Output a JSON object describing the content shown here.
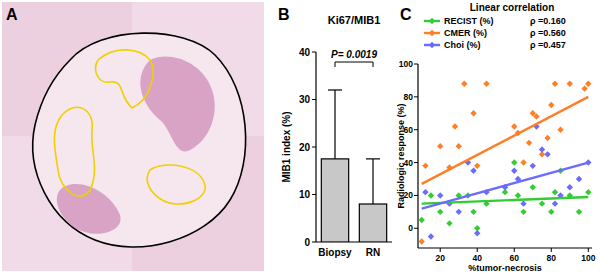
{
  "image_panel": {
    "label": "A"
  },
  "chart_data": [
    {
      "type": "bar",
      "title": "Ki67/MIB1",
      "annotations": [
        "B",
        "P= 0.0019"
      ],
      "y_label": "MIB1 index (%)",
      "categories": [
        "Biopsy",
        "RN"
      ],
      "values": [
        17.5,
        8
      ],
      "errors": [
        14.5,
        9.5
      ],
      "color": "#c8c8c8",
      "ylim": [
        0,
        40
      ],
      "yticks": [
        0,
        10,
        20,
        30,
        40
      ],
      "grid": false
    },
    {
      "type": "scatter",
      "title": "Linear correlation",
      "annotations": [
        "C"
      ],
      "x_label": "%tumor-necrosis",
      "y_label": "Radiologic response (%)",
      "xlim": [
        8,
        102
      ],
      "xticks": [
        20,
        40,
        60,
        80,
        100
      ],
      "ylim": [
        -12,
        100
      ],
      "yticks": [
        0,
        20,
        40,
        60,
        80,
        100
      ],
      "legend": "top-left",
      "grid": false,
      "marker": "diamond",
      "series": [
        {
          "name": "RECIST (%)",
          "annotation": "ρ =0.160",
          "color": "#33cc33",
          "x": [
            10,
            15,
            20,
            25,
            30,
            35,
            38,
            40,
            45,
            55,
            60,
            62,
            65,
            70,
            75,
            80,
            82,
            85,
            90,
            95,
            100
          ],
          "values": [
            5,
            20,
            10,
            3,
            20,
            20,
            10,
            0,
            15,
            22,
            40,
            20,
            10,
            25,
            15,
            10,
            22,
            35,
            20,
            10,
            22
          ],
          "fit": {
            "x": [
              10,
              100
            ],
            "y": [
              15,
              19
            ]
          }
        },
        {
          "name": "CMER (%)",
          "annotation": "ρ =0.560",
          "color": "#ff7f27",
          "x": [
            10,
            12,
            20,
            25,
            28,
            30,
            33,
            38,
            40,
            45,
            60,
            62,
            65,
            68,
            70,
            72,
            75,
            78,
            80,
            82,
            85,
            90,
            98,
            100
          ],
          "values": [
            -8,
            38,
            50,
            37,
            62,
            50,
            88,
            70,
            38,
            88,
            62,
            58,
            40,
            52,
            70,
            68,
            45,
            55,
            75,
            88,
            60,
            88,
            85,
            88
          ],
          "fit": {
            "x": [
              10,
              100
            ],
            "y": [
              27,
              80
            ]
          }
        },
        {
          "name": "Choi (%)",
          "annotation": "ρ =0.457",
          "color": "#6b6bff",
          "x": [
            12,
            15,
            20,
            25,
            30,
            35,
            38,
            40,
            45,
            55,
            60,
            62,
            65,
            70,
            72,
            75,
            78,
            82,
            85,
            90,
            95,
            100
          ],
          "values": [
            22,
            -5,
            20,
            15,
            10,
            40,
            35,
            -3,
            22,
            25,
            35,
            30,
            15,
            38,
            62,
            48,
            45,
            15,
            20,
            25,
            30,
            40
          ],
          "fit": {
            "x": [
              10,
              100
            ],
            "y": [
              12,
              40
            ]
          }
        }
      ]
    }
  ]
}
